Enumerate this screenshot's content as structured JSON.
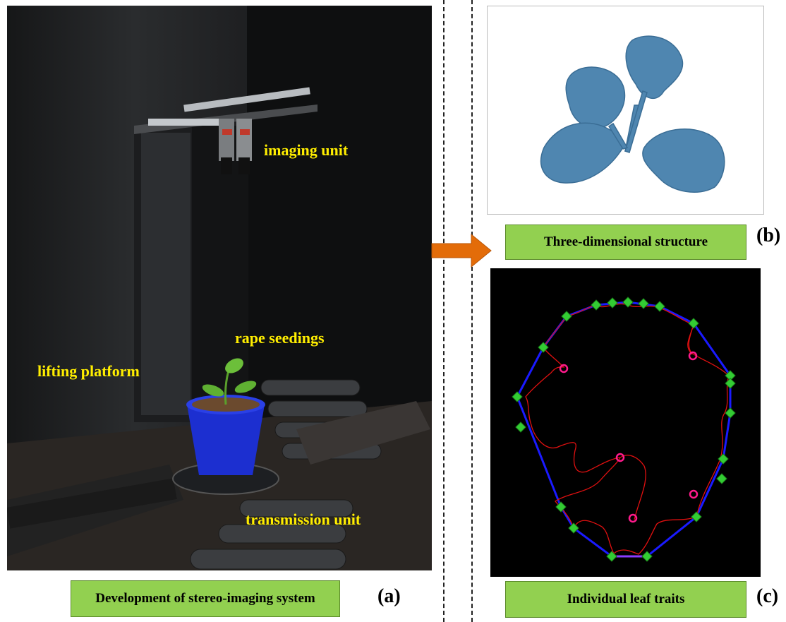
{
  "panel_a": {
    "labels": {
      "imaging_unit": "imaging unit",
      "rape_seedings": "rape seedings",
      "lifting_platform": "lifting platform",
      "transmission_unit": "transmission unit"
    },
    "caption": "Development of stereo-imaging system",
    "letter": "(a)"
  },
  "panel_b": {
    "caption": "Three-dimensional structure",
    "letter": "(b)"
  },
  "panel_c": {
    "caption": "Individual leaf traits",
    "letter": "(c)"
  },
  "colors": {
    "caption_fill": "#92d050",
    "label_text": "#ffee00",
    "arrow": "#e36c09",
    "plant_blue": "#4f86b0",
    "hull_blue": "#1a1aff",
    "contour_red": "#e01010",
    "marker_green": "#33cc33",
    "marker_magenta": "#ff1a8c"
  }
}
